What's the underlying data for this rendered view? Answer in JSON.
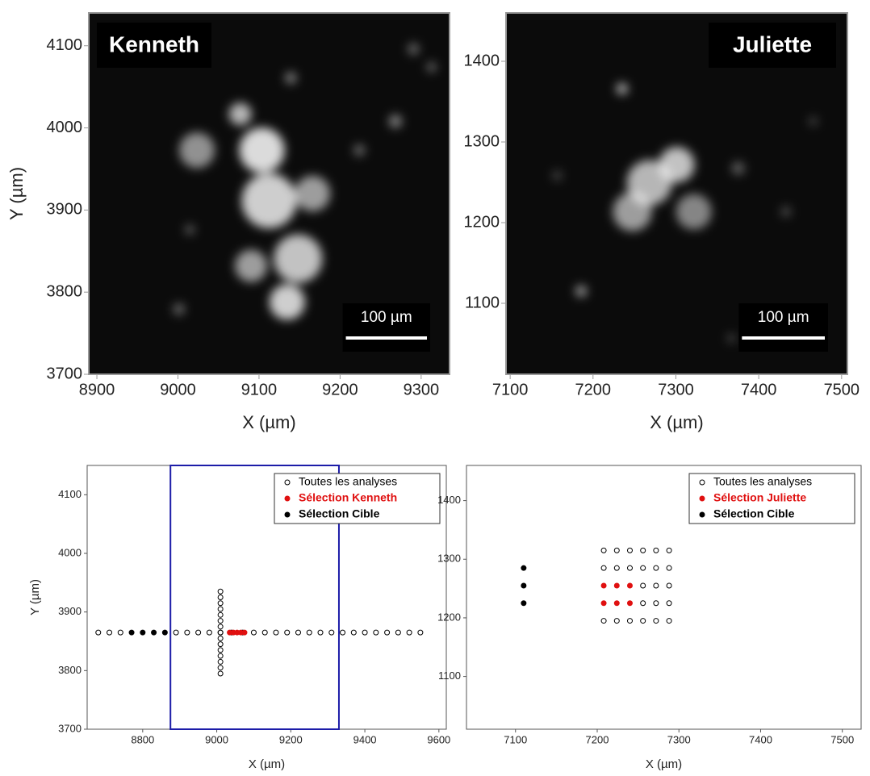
{
  "chart_data": [
    {
      "type": "image",
      "label": "Kenneth",
      "label_corner": "top-left",
      "xlabel": "X (µm)",
      "ylabel": "Y (µm)",
      "xlim": [
        8890,
        9335
      ],
      "ylim": [
        3700,
        4140
      ],
      "xticks": [
        8900,
        9000,
        9100,
        9200,
        9300
      ],
      "yticks": [
        3700,
        3800,
        3900,
        4000,
        4100
      ],
      "scale_bar": {
        "label": "100 µm",
        "length": 100
      }
    },
    {
      "type": "image",
      "label": "Juliette",
      "label_corner": "top-right",
      "xlabel": "X (µm)",
      "xlim": [
        7095,
        7507
      ],
      "ylim": [
        1012,
        1460
      ],
      "xticks": [
        7100,
        7200,
        7300,
        7400,
        7500
      ],
      "yticks": [
        1100,
        1200,
        1300,
        1400
      ],
      "scale_bar": {
        "label": "100 µm",
        "length": 100
      }
    },
    {
      "type": "scatter",
      "xlabel": "X (µm)",
      "ylabel": "Y (µm)",
      "legend": "top-right",
      "xlim": [
        8650,
        9620
      ],
      "ylim": [
        3700,
        4150
      ],
      "xticks": [
        8800,
        9000,
        9200,
        9400,
        9600
      ],
      "yticks": [
        3700,
        3800,
        3900,
        4000,
        4100
      ],
      "highlight": {
        "color": "#1c1ca8",
        "xlim": [
          8875,
          9330
        ]
      },
      "series": [
        {
          "name": "Toutes les analyses",
          "color": "#000000",
          "marker": "open",
          "x": [
            8680,
            8710,
            8740,
            8890,
            8920,
            8950,
            8980,
            9010,
            9040,
            9070,
            9100,
            9130,
            9160,
            9190,
            9220,
            9250,
            9280,
            9310,
            9340,
            9370,
            9400,
            9430,
            9460,
            9490,
            9520,
            9550,
            9010,
            9010,
            9010,
            9010,
            9010,
            9010,
            9010,
            9010,
            9010,
            9010,
            9010,
            9010,
            9010,
            9010,
            9010
          ],
          "values": [
            3865,
            3865,
            3865,
            3865,
            3865,
            3865,
            3865,
            3865,
            3865,
            3865,
            3865,
            3865,
            3865,
            3865,
            3865,
            3865,
            3865,
            3865,
            3865,
            3865,
            3865,
            3865,
            3865,
            3865,
            3865,
            3865,
            3795,
            3805,
            3815,
            3825,
            3835,
            3845,
            3855,
            3865,
            3875,
            3885,
            3895,
            3905,
            3915,
            3925,
            3935
          ]
        },
        {
          "name": "Sélection Kenneth",
          "color": "#e01010",
          "marker": "filled",
          "x": [
            9035,
            9045,
            9055,
            9065,
            9075
          ],
          "values": [
            3865,
            3865,
            3865,
            3865,
            3865
          ]
        },
        {
          "name": "Sélection Cible",
          "color": "#000000",
          "marker": "filled",
          "x": [
            8770,
            8800,
            8830,
            8860
          ],
          "values": [
            3865,
            3865,
            3865,
            3865
          ]
        }
      ]
    },
    {
      "type": "scatter",
      "xlabel": "X (µm)",
      "legend": "top-right",
      "xlim": [
        7040,
        7523
      ],
      "ylim": [
        1010,
        1460
      ],
      "xticks": [
        7100,
        7200,
        7300,
        7400,
        7500
      ],
      "yticks": [
        1100,
        1200,
        1300,
        1400
      ],
      "series": [
        {
          "name": "Toutes les analyses",
          "color": "#000000",
          "marker": "open",
          "x": [
            7208,
            7224,
            7240,
            7256,
            7272,
            7288,
            7208,
            7224,
            7240,
            7256,
            7272,
            7288,
            7256,
            7272,
            7288,
            7256,
            7272,
            7288,
            7208,
            7224,
            7240,
            7256,
            7272,
            7288
          ],
          "values": [
            1315,
            1315,
            1315,
            1315,
            1315,
            1315,
            1285,
            1285,
            1285,
            1285,
            1285,
            1285,
            1255,
            1255,
            1255,
            1225,
            1225,
            1225,
            1195,
            1195,
            1195,
            1195,
            1195,
            1195
          ]
        },
        {
          "name": "Sélection Juliette",
          "color": "#e01010",
          "marker": "filled",
          "x": [
            7208,
            7224,
            7240,
            7208,
            7224,
            7240
          ],
          "values": [
            1255,
            1255,
            1255,
            1225,
            1225,
            1225
          ]
        },
        {
          "name": "Sélection Cible",
          "color": "#000000",
          "marker": "filled",
          "x": [
            7110,
            7110,
            7110
          ],
          "values": [
            1285,
            1255,
            1225
          ]
        }
      ]
    }
  ]
}
